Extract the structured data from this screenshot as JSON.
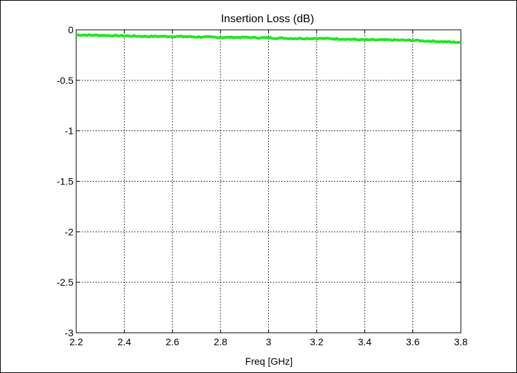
{
  "chart_data": {
    "type": "line",
    "title": "Insertion Loss (dB)",
    "xlabel": "Freq [GHz]",
    "ylabel": "",
    "xlim": [
      2.2,
      3.8
    ],
    "ylim": [
      -3,
      0
    ],
    "xticks": [
      "2.2",
      "2.4",
      "2.6",
      "2.8",
      "3",
      "3.2",
      "3.4",
      "3.6",
      "3.8"
    ],
    "yticks": [
      "0",
      "-0.5",
      "-1",
      "-1.5",
      "-2",
      "-2.5",
      "-3"
    ],
    "grid": true,
    "series": [
      {
        "color": "#22e622",
        "x": [
          2.2,
          2.3,
          2.4,
          2.5,
          2.6,
          2.7,
          2.8,
          2.9,
          3.0,
          3.1,
          3.2,
          3.3,
          3.4,
          3.5,
          3.6,
          3.7,
          3.8
        ],
        "y": [
          -0.05,
          -0.055,
          -0.06,
          -0.065,
          -0.065,
          -0.07,
          -0.075,
          -0.075,
          -0.08,
          -0.085,
          -0.085,
          -0.09,
          -0.1,
          -0.1,
          -0.105,
          -0.115,
          -0.125
        ]
      }
    ]
  }
}
